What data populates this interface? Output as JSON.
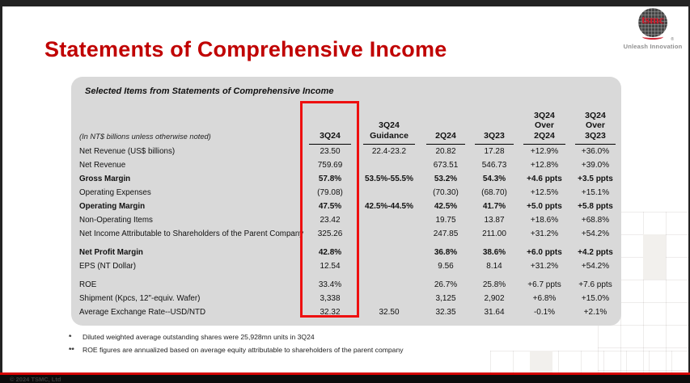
{
  "colors": {
    "title_red": "#c00000",
    "highlight_red": "#ee1010",
    "brand_red": "#cf1f2f",
    "panel_gray": "#d9d9d9"
  },
  "slide": {
    "title": "Statements of Comprehensive Income",
    "logo": {
      "brand": "tsmc",
      "registered_mark": "®",
      "tagline": "Unleash Innovation"
    },
    "footer": {
      "copyright": "© 2024 TSMC, Ltd"
    }
  },
  "table": {
    "subtitle": "Selected Items from Statements of Comprehensive Income",
    "units_note": "(In NT$ billions unless otherwise noted)",
    "highlighted_column": "3Q24",
    "columns": [
      {
        "lines": [
          "3Q24"
        ]
      },
      {
        "lines": [
          "3Q24",
          "Guidance"
        ]
      },
      {
        "lines": [
          "2Q24"
        ]
      },
      {
        "lines": [
          "3Q23"
        ]
      },
      {
        "lines": [
          "3Q24",
          "Over",
          "2Q24"
        ]
      },
      {
        "lines": [
          "3Q24",
          "Over",
          "3Q23"
        ]
      }
    ],
    "rows": [
      {
        "label": "Net Revenue (US$ billions)",
        "bold": false,
        "gap_before": false,
        "values": [
          "23.50",
          "22.4-23.2",
          "20.82",
          "17.28",
          "+12.9%",
          "+36.0%"
        ]
      },
      {
        "label": "Net Revenue",
        "bold": false,
        "gap_before": false,
        "values": [
          "759.69",
          "",
          "673.51",
          "546.73",
          "+12.8%",
          "+39.0%"
        ]
      },
      {
        "label": "Gross Margin",
        "bold": true,
        "gap_before": false,
        "values": [
          "57.8%",
          "53.5%-55.5%",
          "53.2%",
          "54.3%",
          "+4.6 ppts",
          "+3.5 ppts"
        ]
      },
      {
        "label": "Operating Expenses",
        "bold": false,
        "gap_before": false,
        "values": [
          "(79.08)",
          "",
          "(70.30)",
          "(68.70)",
          "+12.5%",
          "+15.1%"
        ]
      },
      {
        "label": "Operating Margin",
        "bold": true,
        "gap_before": false,
        "values": [
          "47.5%",
          "42.5%-44.5%",
          "42.5%",
          "41.7%",
          "+5.0 ppts",
          "+5.8 ppts"
        ]
      },
      {
        "label": "Non-Operating Items",
        "bold": false,
        "gap_before": false,
        "values": [
          "23.42",
          "",
          "19.75",
          "13.87",
          "+18.6%",
          "+68.8%"
        ]
      },
      {
        "label": "Net Income Attributable to Shareholders of the Parent Company",
        "bold": false,
        "gap_before": false,
        "values": [
          "325.26",
          "",
          "247.85",
          "211.00",
          "+31.2%",
          "+54.2%"
        ]
      },
      {
        "label": "Net Profit Margin",
        "bold": true,
        "gap_before": true,
        "values": [
          "42.8%",
          "",
          "36.8%",
          "38.6%",
          "+6.0 ppts",
          "+4.2 ppts"
        ]
      },
      {
        "label": "EPS (NT Dollar)",
        "bold": false,
        "gap_before": false,
        "values": [
          "12.54",
          "",
          "9.56",
          "8.14",
          "+31.2%",
          "+54.2%"
        ]
      },
      {
        "label": "ROE",
        "bold": false,
        "gap_before": true,
        "values": [
          "33.4%",
          "",
          "26.7%",
          "25.8%",
          "+6.7 ppts",
          "+7.6 ppts"
        ]
      },
      {
        "label": "Shipment (Kpcs, 12\"-equiv. Wafer)",
        "bold": false,
        "gap_before": false,
        "values": [
          "3,338",
          "",
          "3,125",
          "2,902",
          "+6.8%",
          "+15.0%"
        ]
      },
      {
        "label": "Average Exchange Rate--USD/NTD",
        "bold": false,
        "gap_before": false,
        "values": [
          "32.32",
          "32.50",
          "32.35",
          "31.64",
          "-0.1%",
          "+2.1%"
        ]
      }
    ]
  },
  "footnotes": [
    {
      "marker": "*",
      "text": "Diluted weighted average outstanding shares were 25,928mn units in 3Q24"
    },
    {
      "marker": "**",
      "text": "ROE figures are annualized based on average equity attributable to shareholders of the parent company"
    }
  ]
}
